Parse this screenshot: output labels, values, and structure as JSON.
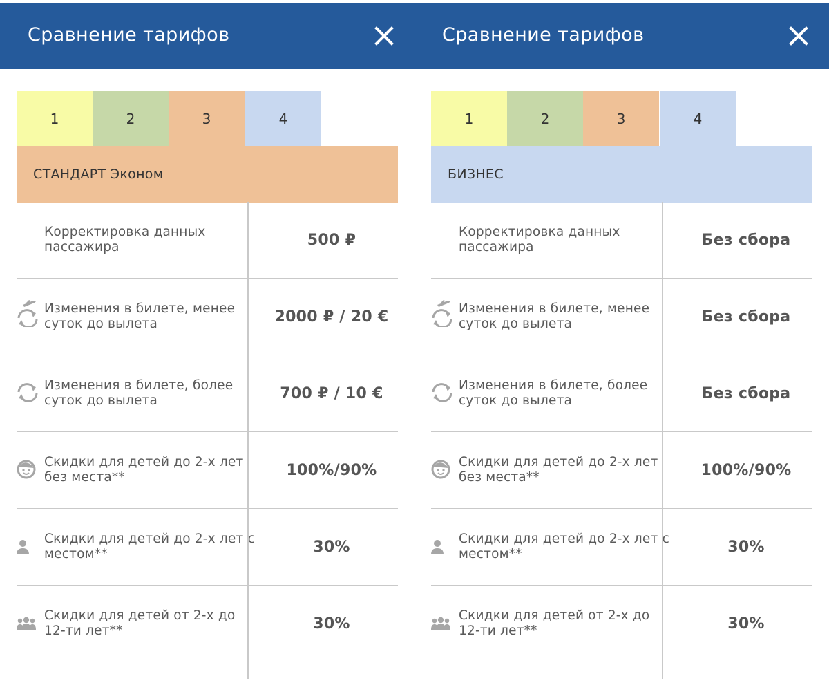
{
  "colors": {
    "header": "#255a9b",
    "tab1": "#f8fba6",
    "tab2": "#c6d8a8",
    "tab3": "#efc197",
    "tab4": "#c8d8f0",
    "icon": "#a6a6a6"
  },
  "screens": [
    {
      "header": {
        "title": "Сравнение тарифов",
        "close_icon": "close-icon"
      },
      "tabs": [
        {
          "label": "1"
        },
        {
          "label": "2"
        },
        {
          "label": "3"
        },
        {
          "label": "4"
        }
      ],
      "selected_tab": 3,
      "fare_name": "СТАНДАРТ Эконом",
      "rows": [
        {
          "icon": "none",
          "label": "Корректировка данных пассажира",
          "value": "500 ₽"
        },
        {
          "icon": "plane-refresh-icon",
          "label": "Изменения в билете, менее суток до вылета",
          "value": "2000 ₽ / 20 €"
        },
        {
          "icon": "refresh-icon",
          "label": "Изменения в билете, более суток до вылета",
          "value": "700 ₽ / 10 €"
        },
        {
          "icon": "baby-face-icon",
          "label": "Скидки для детей до 2-х лет без места**",
          "value": "100%/90%"
        },
        {
          "icon": "person-icon",
          "label": "Скидки для детей до 2-х лет с местом**",
          "value": "30%"
        },
        {
          "icon": "group-icon",
          "label": "Скидки для детей от 2-х до 12-ти лет**",
          "value": "30%"
        }
      ]
    },
    {
      "header": {
        "title": "Сравнение тарифов",
        "close_icon": "close-icon"
      },
      "tabs": [
        {
          "label": "1"
        },
        {
          "label": "2"
        },
        {
          "label": "3"
        },
        {
          "label": "4"
        }
      ],
      "selected_tab": 4,
      "fare_name": "БИЗНЕС",
      "rows": [
        {
          "icon": "none",
          "label": "Корректировка данных пассажира",
          "value": "Без сбора"
        },
        {
          "icon": "plane-refresh-icon",
          "label": "Изменения в билете, менее суток до вылета",
          "value": "Без сбора"
        },
        {
          "icon": "refresh-icon",
          "label": "Изменения в билете, более суток до вылета",
          "value": "Без сбора"
        },
        {
          "icon": "baby-face-icon",
          "label": "Скидки для детей до 2-х лет без места**",
          "value": "100%/90%"
        },
        {
          "icon": "person-icon",
          "label": "Скидки для детей до 2-х лет с местом**",
          "value": "30%"
        },
        {
          "icon": "group-icon",
          "label": "Скидки для детей от 2-х до 12-ти лет**",
          "value": "30%"
        }
      ]
    }
  ]
}
